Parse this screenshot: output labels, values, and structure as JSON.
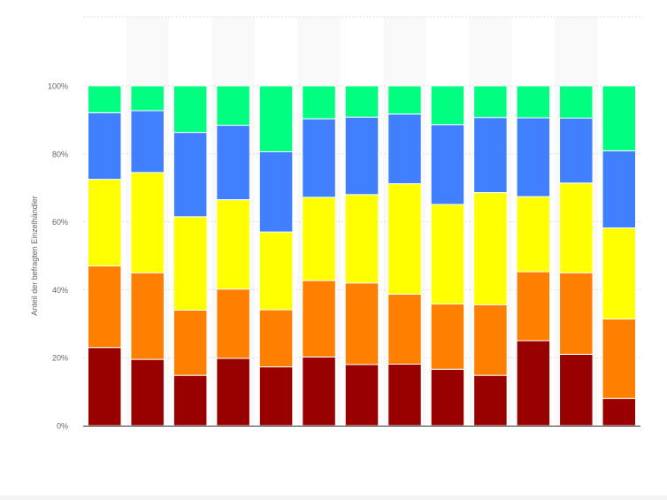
{
  "chart_data": {
    "type": "bar",
    "stacked": true,
    "percent": true,
    "ylabel": "Anteil der befragten Einzelhändler",
    "xlabel": "",
    "title": "",
    "ylim": [
      0,
      100
    ],
    "yticks": [
      "0%",
      "20%",
      "40%",
      "60%",
      "80%",
      "100%"
    ],
    "grid": true,
    "categories": [
      "",
      "",
      "",
      "",
      "",
      "",
      "",
      "",
      "",
      "",
      "",
      "",
      ""
    ],
    "series": [
      {
        "color": "#990000",
        "values": [
          23,
          19.5,
          14.8,
          19.8,
          17.3,
          20.2,
          18,
          18.1,
          16.6,
          14.8,
          25,
          21,
          8
        ]
      },
      {
        "color": "#ff8000",
        "values": [
          24,
          25.5,
          19.2,
          20.4,
          16.8,
          22.5,
          24,
          20.6,
          19.2,
          20.8,
          20.3,
          24,
          23.4
        ]
      },
      {
        "color": "#ffff00",
        "values": [
          25.5,
          29.5,
          27.5,
          26.3,
          22.9,
          24.5,
          26,
          32.5,
          29.3,
          33,
          22.1,
          26.4,
          26.8
        ]
      },
      {
        "color": "#4080ff",
        "values": [
          19.6,
          18.2,
          24.8,
          21.9,
          23.6,
          23.1,
          22.8,
          20.5,
          23.5,
          22.1,
          23.2,
          19.1,
          22.7
        ]
      },
      {
        "color": "#00ff80",
        "values": [
          7.9,
          7.3,
          13.7,
          11.6,
          19.4,
          9.7,
          9.2,
          8.3,
          11.4,
          9.3,
          9.4,
          9.5,
          19.1
        ]
      }
    ]
  },
  "colors": {
    "background": "#f4f4f4",
    "plot_background": "#ffffff",
    "band": "#f9f9f9",
    "grid": "#dddddd",
    "axis": "#333333",
    "text": "#666666"
  }
}
